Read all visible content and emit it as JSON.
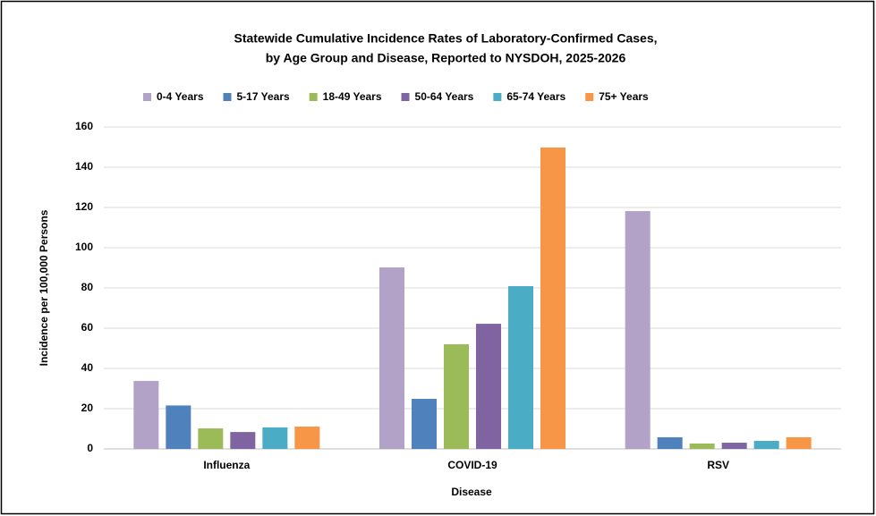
{
  "chart_data": {
    "type": "bar",
    "title": [
      "Statewide Cumulative Incidence Rates of Laboratory-Confirmed Cases,",
      "by Age Group and Disease, Reported to NYSDOH, 2025-2026"
    ],
    "xlabel": "Disease",
    "ylabel": "Incidence per 100,000 Persons",
    "categories": [
      "Influenza",
      "COVID-19",
      "RSV"
    ],
    "series": [
      {
        "name": "0-4 Years",
        "color": "#b3a2c7",
        "values": [
          33.8,
          90.2,
          118.2
        ]
      },
      {
        "name": "5-17 Years",
        "color": "#4f81bd",
        "values": [
          21.6,
          24.9,
          5.8
        ]
      },
      {
        "name": "18-49 Years",
        "color": "#9bbb59",
        "values": [
          10.2,
          52,
          2.7
        ]
      },
      {
        "name": "50-64 Years",
        "color": "#8064a2",
        "values": [
          8.4,
          62.2,
          3.1
        ]
      },
      {
        "name": "65-74 Years",
        "color": "#4bacc6",
        "values": [
          10.7,
          80.9,
          4
        ]
      },
      {
        "name": "75+ Years",
        "color": "#f79646",
        "values": [
          11.1,
          149.8,
          5.8
        ]
      }
    ],
    "ylim": [
      0,
      160
    ],
    "yticks": [
      0,
      20,
      40,
      60,
      80,
      100,
      120,
      140,
      160
    ],
    "grid": true,
    "legend": "top"
  }
}
